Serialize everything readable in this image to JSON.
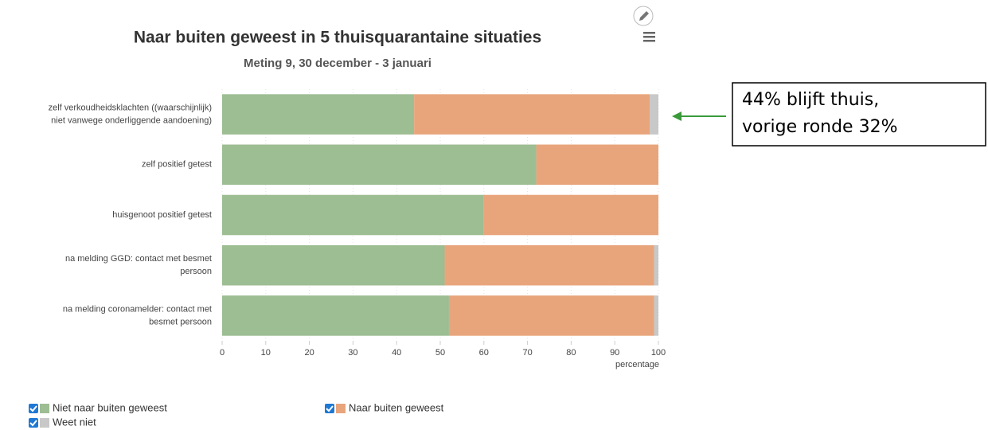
{
  "chart_data": {
    "type": "stacked-bar-horizontal",
    "title": "Naar buiten geweest in 5 thuisquarantaine situaties",
    "subtitle": "Meting 9, 30 december - 3 januari",
    "categories": [
      [
        "zelf verkoudheidsklachten ((waarschijnlijk)",
        "niet vanwege onderliggende aandoening)"
      ],
      [
        "zelf positief getest"
      ],
      [
        "huisgenoot positief getest"
      ],
      [
        "na melding GGD: contact met besmet",
        "persoon"
      ],
      [
        "na melding coronamelder: contact met",
        "besmet persoon"
      ]
    ],
    "series": [
      {
        "name": "Niet naar buiten geweest",
        "color": "#9dbd93",
        "values": [
          44,
          72,
          60,
          51,
          52
        ]
      },
      {
        "name": "Naar buiten geweest",
        "color": "#e8a57c",
        "values": [
          54,
          28,
          40,
          48,
          47
        ]
      },
      {
        "name": "Weet niet",
        "color": "#c8c8c8",
        "values": [
          2,
          0,
          0,
          1,
          1
        ]
      }
    ],
    "xlim": [
      0,
      100
    ],
    "xticks": [
      0,
      10,
      20,
      30,
      40,
      50,
      60,
      70,
      80,
      90,
      100
    ],
    "xlabel": "percentage",
    "grid": true,
    "annotation": [
      "44% blijft thuis,",
      "vorige ronde 32%"
    ]
  }
}
